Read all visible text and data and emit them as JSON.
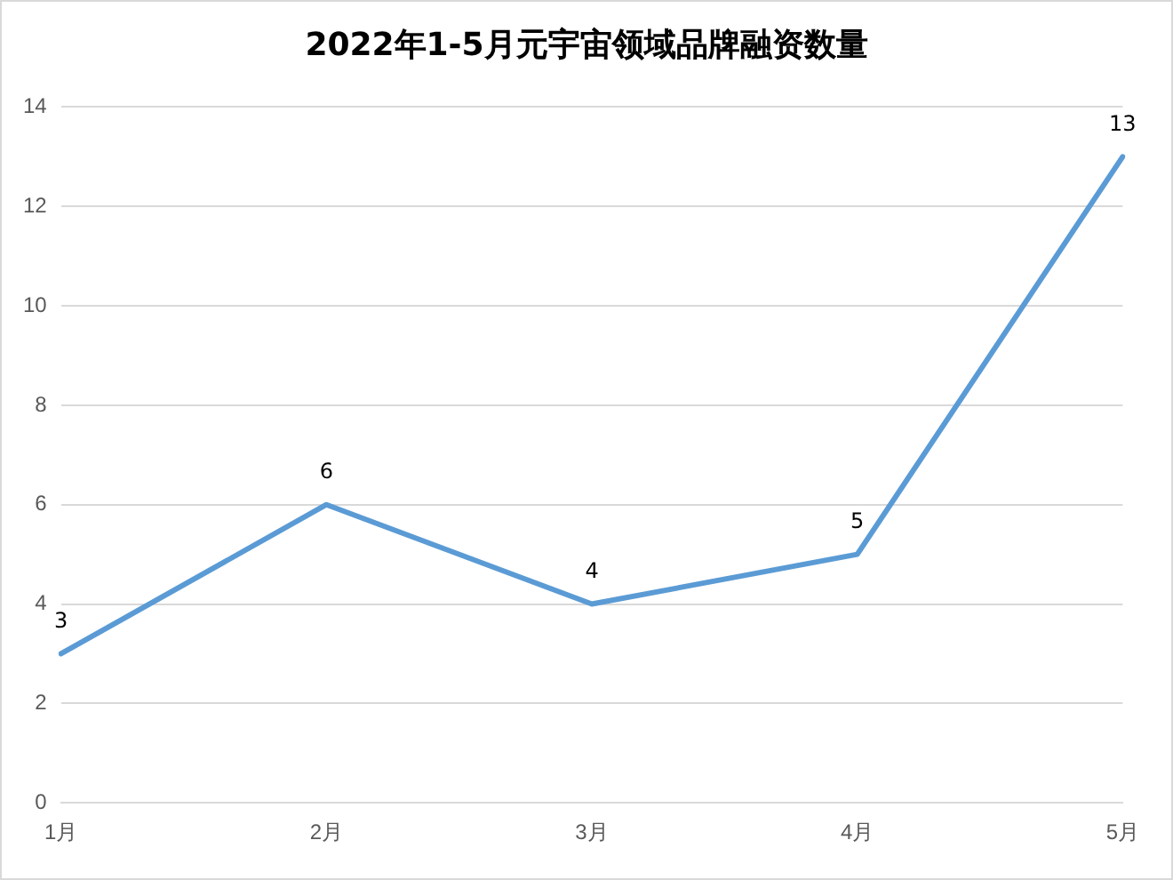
{
  "chart_data": {
    "type": "line",
    "title": "2022年1-5月元宇宙领域品牌融资数量",
    "categories": [
      "1月",
      "2月",
      "3月",
      "4月",
      "5月"
    ],
    "series": [
      {
        "color": "#5b9bd5",
        "values": [
          3,
          6,
          4,
          5,
          13
        ]
      }
    ],
    "ylim": [
      0,
      14
    ],
    "yticks": [
      0,
      2,
      4,
      6,
      8,
      10,
      12,
      14
    ],
    "grid": "y",
    "legend": false,
    "marker": "none",
    "line_style": "solid",
    "data_labels": true
  }
}
